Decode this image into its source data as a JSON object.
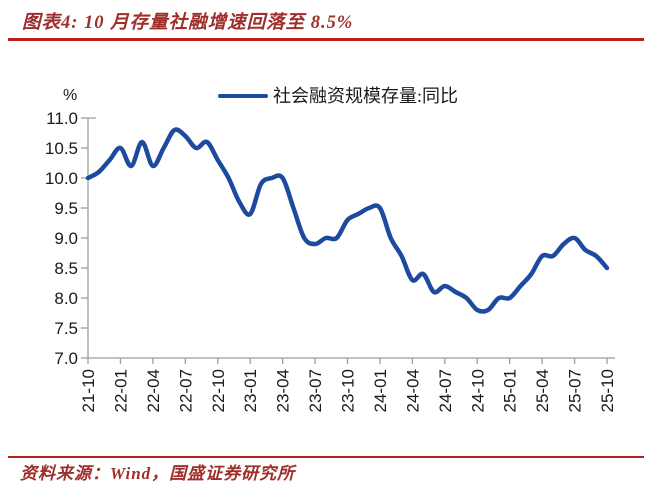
{
  "header": {
    "title": "图表4: 10 月存量社融增速回落至 8.5%"
  },
  "footer": {
    "source": "资料来源：Wind，国盛证券研究所"
  },
  "legend": {
    "label": "社会融资规模存量:同比"
  },
  "chart_data": {
    "type": "line",
    "title": "图表4: 10 月存量社融增速回落至 8.5%",
    "unit_label": "%",
    "xlabel": "",
    "ylabel": "%",
    "ylim": [
      7.0,
      11.0
    ],
    "ytick_step": 0.5,
    "xtick_every": 3,
    "grid": false,
    "legend_position": "top-center",
    "x": [
      "21-10",
      "21-11",
      "21-12",
      "22-01",
      "22-02",
      "22-03",
      "22-04",
      "22-05",
      "22-06",
      "22-07",
      "22-08",
      "22-09",
      "22-10",
      "22-11",
      "22-12",
      "23-01",
      "23-02",
      "23-03",
      "23-04",
      "23-05",
      "23-06",
      "23-07",
      "23-08",
      "23-09",
      "23-10",
      "23-11",
      "23-12",
      "24-01",
      "24-02",
      "24-03",
      "24-04",
      "24-05",
      "24-06",
      "24-07",
      "24-08",
      "24-09",
      "24-10",
      "24-11",
      "24-12",
      "25-01",
      "25-02",
      "25-03",
      "25-04",
      "25-05",
      "25-06",
      "25-07",
      "25-08",
      "25-09",
      "25-10"
    ],
    "series": [
      {
        "name": "社会融资规模存量:同比",
        "color": "#1d4a9e",
        "values": [
          10.0,
          10.1,
          10.3,
          10.5,
          10.2,
          10.6,
          10.2,
          10.5,
          10.8,
          10.7,
          10.5,
          10.6,
          10.3,
          10.0,
          9.6,
          9.4,
          9.9,
          10.0,
          10.0,
          9.5,
          9.0,
          8.9,
          9.0,
          9.0,
          9.3,
          9.4,
          9.5,
          9.5,
          9.0,
          8.7,
          8.3,
          8.4,
          8.1,
          8.2,
          8.1,
          8.0,
          7.8,
          7.8,
          8.0,
          8.0,
          8.2,
          8.4,
          8.7,
          8.7,
          8.9,
          9.0,
          8.8,
          8.7,
          8.5
        ]
      }
    ]
  },
  "colors": {
    "heading_red": "#9e2f2b",
    "rule_red": "#bd1f1f",
    "line_blue": "#1d4a9e",
    "axis_gray": "#9e9e9e",
    "text_dark": "#1a1a1a"
  }
}
